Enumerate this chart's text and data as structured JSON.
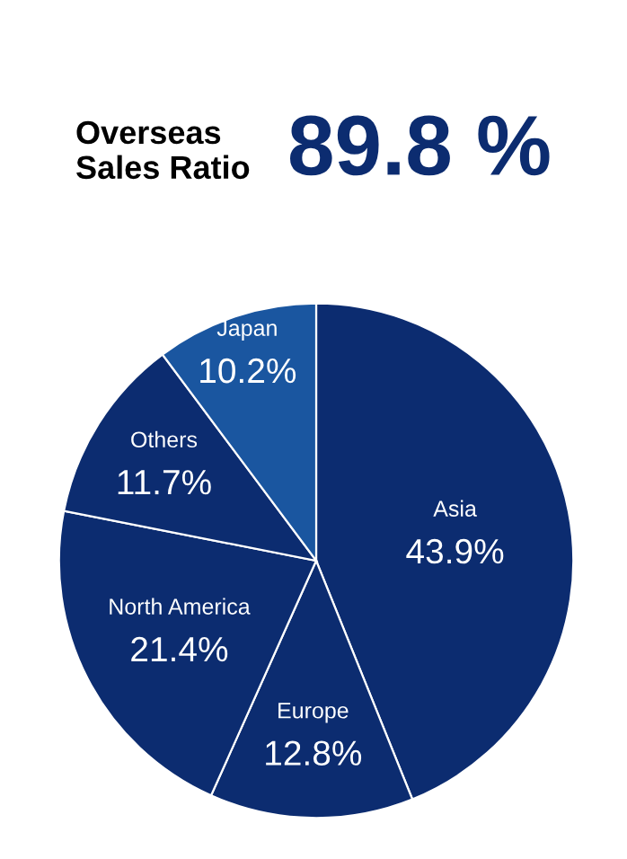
{
  "chart_data": {
    "type": "pie",
    "title": "Overseas\nSales Ratio",
    "subtitle": "89.8 %",
    "categories": [
      "Asia",
      "Europe",
      "North America",
      "Others",
      "Japan"
    ],
    "values": [
      43.9,
      12.8,
      21.4,
      11.7,
      10.2
    ],
    "value_labels": [
      "43.9%",
      "12.8%",
      "21.4%",
      "11.7%",
      "10.2%"
    ],
    "colors": [
      "#0c2c70",
      "#0c2c70",
      "#0c2c70",
      "#0c2c70",
      "#1a56a0"
    ]
  }
}
